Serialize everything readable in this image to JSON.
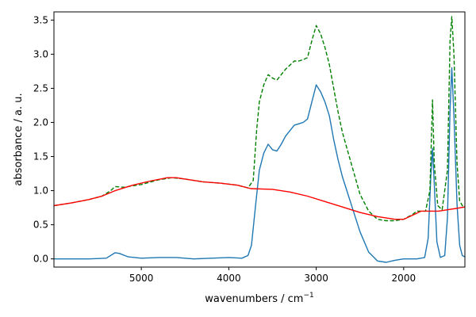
{
  "chart_data": {
    "type": "line",
    "title": "",
    "xlabel": "wavenumbers / cm",
    "xlabel_superscript": "−1",
    "ylabel": "absorbance / a. u.",
    "xlim": [
      5999,
      1300
    ],
    "ylim": [
      -0.12,
      3.62
    ],
    "x_reversed": true,
    "grid": false,
    "legend": "none",
    "x_ticks": [
      5000,
      4000,
      3000,
      2000
    ],
    "x_tick_labels": [
      "5000",
      "4000",
      "3000",
      "2000"
    ],
    "y_ticks": [
      0.0,
      0.5,
      1.0,
      1.5,
      2.0,
      2.5,
      3.0,
      3.5
    ],
    "y_tick_labels": [
      "0.0",
      "0.5",
      "1.0",
      "1.5",
      "2.0",
      "2.5",
      "3.0",
      "3.5"
    ],
    "series": [
      {
        "color": "#1f77b4",
        "style": "solid",
        "points": [
          [
            5999,
            0.0
          ],
          [
            5600,
            0.0
          ],
          [
            5400,
            0.01
          ],
          [
            5300,
            0.09
          ],
          [
            5250,
            0.08
          ],
          [
            5150,
            0.03
          ],
          [
            5000,
            0.01
          ],
          [
            4800,
            0.02
          ],
          [
            4600,
            0.02
          ],
          [
            4400,
            0.0
          ],
          [
            4200,
            0.01
          ],
          [
            4000,
            0.02
          ],
          [
            3850,
            0.01
          ],
          [
            3780,
            0.05
          ],
          [
            3740,
            0.2
          ],
          [
            3700,
            0.7
          ],
          [
            3650,
            1.3
          ],
          [
            3600,
            1.55
          ],
          [
            3550,
            1.68
          ],
          [
            3500,
            1.6
          ],
          [
            3450,
            1.58
          ],
          [
            3400,
            1.68
          ],
          [
            3350,
            1.8
          ],
          [
            3300,
            1.88
          ],
          [
            3250,
            1.96
          ],
          [
            3200,
            1.98
          ],
          [
            3150,
            2.0
          ],
          [
            3100,
            2.05
          ],
          [
            3050,
            2.3
          ],
          [
            3000,
            2.55
          ],
          [
            2950,
            2.45
          ],
          [
            2900,
            2.3
          ],
          [
            2850,
            2.1
          ],
          [
            2800,
            1.75
          ],
          [
            2750,
            1.45
          ],
          [
            2700,
            1.2
          ],
          [
            2600,
            0.8
          ],
          [
            2500,
            0.4
          ],
          [
            2400,
            0.1
          ],
          [
            2300,
            -0.03
          ],
          [
            2200,
            -0.05
          ],
          [
            2100,
            -0.02
          ],
          [
            2000,
            0.0
          ],
          [
            1850,
            0.0
          ],
          [
            1760,
            0.02
          ],
          [
            1720,
            0.3
          ],
          [
            1690,
            1.2
          ],
          [
            1670,
            1.62
          ],
          [
            1650,
            1.1
          ],
          [
            1620,
            0.25
          ],
          [
            1580,
            0.02
          ],
          [
            1530,
            0.05
          ],
          [
            1500,
            0.6
          ],
          [
            1470,
            2.2
          ],
          [
            1450,
            2.8
          ],
          [
            1425,
            2.1
          ],
          [
            1390,
            0.8
          ],
          [
            1360,
            0.2
          ],
          [
            1330,
            0.05
          ],
          [
            1300,
            0.03
          ]
        ]
      },
      {
        "color": "#008000",
        "style": "dashed",
        "points": [
          [
            5999,
            0.78
          ],
          [
            5800,
            0.82
          ],
          [
            5600,
            0.87
          ],
          [
            5450,
            0.92
          ],
          [
            5350,
            1.0
          ],
          [
            5300,
            1.06
          ],
          [
            5200,
            1.05
          ],
          [
            5000,
            1.09
          ],
          [
            4800,
            1.16
          ],
          [
            4650,
            1.19
          ],
          [
            4500,
            1.17
          ],
          [
            4300,
            1.13
          ],
          [
            4100,
            1.11
          ],
          [
            3900,
            1.08
          ],
          [
            3780,
            1.04
          ],
          [
            3720,
            1.15
          ],
          [
            3680,
            1.9
          ],
          [
            3650,
            2.3
          ],
          [
            3600,
            2.55
          ],
          [
            3550,
            2.7
          ],
          [
            3500,
            2.65
          ],
          [
            3450,
            2.62
          ],
          [
            3400,
            2.7
          ],
          [
            3350,
            2.78
          ],
          [
            3300,
            2.84
          ],
          [
            3250,
            2.9
          ],
          [
            3200,
            2.9
          ],
          [
            3150,
            2.92
          ],
          [
            3100,
            2.95
          ],
          [
            3050,
            3.2
          ],
          [
            3000,
            3.42
          ],
          [
            2950,
            3.3
          ],
          [
            2900,
            3.1
          ],
          [
            2850,
            2.85
          ],
          [
            2800,
            2.5
          ],
          [
            2750,
            2.15
          ],
          [
            2700,
            1.85
          ],
          [
            2600,
            1.4
          ],
          [
            2500,
            0.95
          ],
          [
            2400,
            0.7
          ],
          [
            2300,
            0.58
          ],
          [
            2200,
            0.56
          ],
          [
            2100,
            0.56
          ],
          [
            2000,
            0.58
          ],
          [
            1900,
            0.65
          ],
          [
            1850,
            0.7
          ],
          [
            1750,
            0.7
          ],
          [
            1700,
            1.0
          ],
          [
            1670,
            2.33
          ],
          [
            1650,
            1.4
          ],
          [
            1610,
            0.78
          ],
          [
            1560,
            0.72
          ],
          [
            1500,
            1.3
          ],
          [
            1470,
            3.2
          ],
          [
            1450,
            3.55
          ],
          [
            1425,
            3.0
          ],
          [
            1390,
            1.4
          ],
          [
            1360,
            0.85
          ],
          [
            1320,
            0.76
          ],
          [
            1300,
            0.77
          ]
        ]
      },
      {
        "color": "#ff0000",
        "style": "solid",
        "points": [
          [
            5999,
            0.78
          ],
          [
            5800,
            0.82
          ],
          [
            5600,
            0.87
          ],
          [
            5450,
            0.92
          ],
          [
            5300,
            1.0
          ],
          [
            5100,
            1.08
          ],
          [
            4900,
            1.14
          ],
          [
            4700,
            1.19
          ],
          [
            4600,
            1.19
          ],
          [
            4500,
            1.17
          ],
          [
            4300,
            1.13
          ],
          [
            4100,
            1.11
          ],
          [
            3900,
            1.08
          ],
          [
            3750,
            1.03
          ],
          [
            3500,
            1.02
          ],
          [
            3300,
            0.98
          ],
          [
            3100,
            0.92
          ],
          [
            2900,
            0.84
          ],
          [
            2700,
            0.76
          ],
          [
            2500,
            0.68
          ],
          [
            2300,
            0.62
          ],
          [
            2100,
            0.58
          ],
          [
            2000,
            0.58
          ],
          [
            1900,
            0.64
          ],
          [
            1800,
            0.7
          ],
          [
            1700,
            0.7
          ],
          [
            1600,
            0.7
          ],
          [
            1500,
            0.72
          ],
          [
            1400,
            0.74
          ],
          [
            1300,
            0.76
          ]
        ]
      }
    ]
  }
}
